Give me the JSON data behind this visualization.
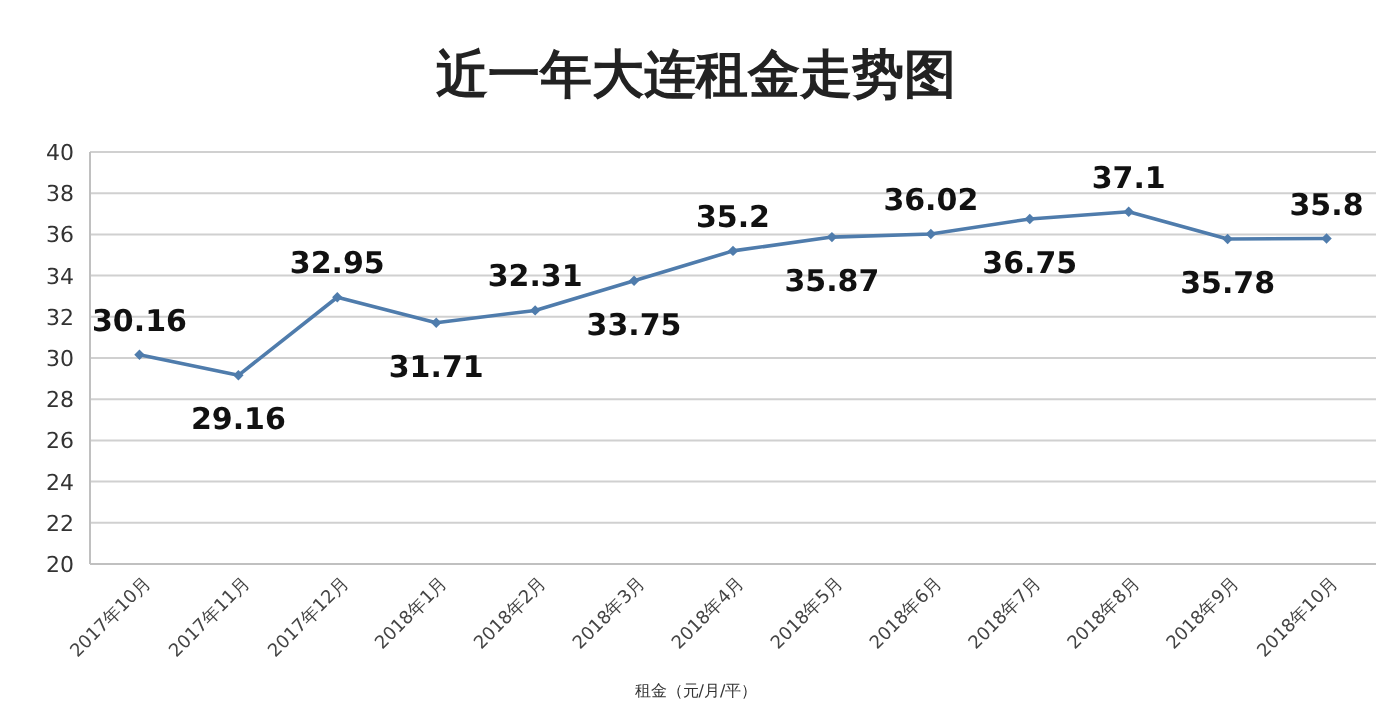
{
  "chart_data": {
    "type": "line",
    "title": "近一年大连租金走势图",
    "xlabel": "租金（元/月/平）",
    "categories": [
      "2017年10月",
      "2017年11月",
      "2017年12月",
      "2018年1月",
      "2018年2月",
      "2018年3月",
      "2018年4月",
      "2018年5月",
      "2018年6月",
      "2018年7月",
      "2018年8月",
      "2018年9月",
      "2018年10月"
    ],
    "series": [
      {
        "color": "#4f7cac",
        "values": [
          30.16,
          29.16,
          32.95,
          31.71,
          32.31,
          33.75,
          35.2,
          35.87,
          36.02,
          36.75,
          37.1,
          35.78,
          35.8
        ]
      }
    ],
    "ylim": [
      20,
      40
    ],
    "yticks": [
      20,
      22,
      24,
      26,
      28,
      30,
      32,
      34,
      36,
      38,
      40
    ],
    "grid": "y",
    "data_labels": true,
    "marker": "diamond",
    "line_style": "solid"
  }
}
